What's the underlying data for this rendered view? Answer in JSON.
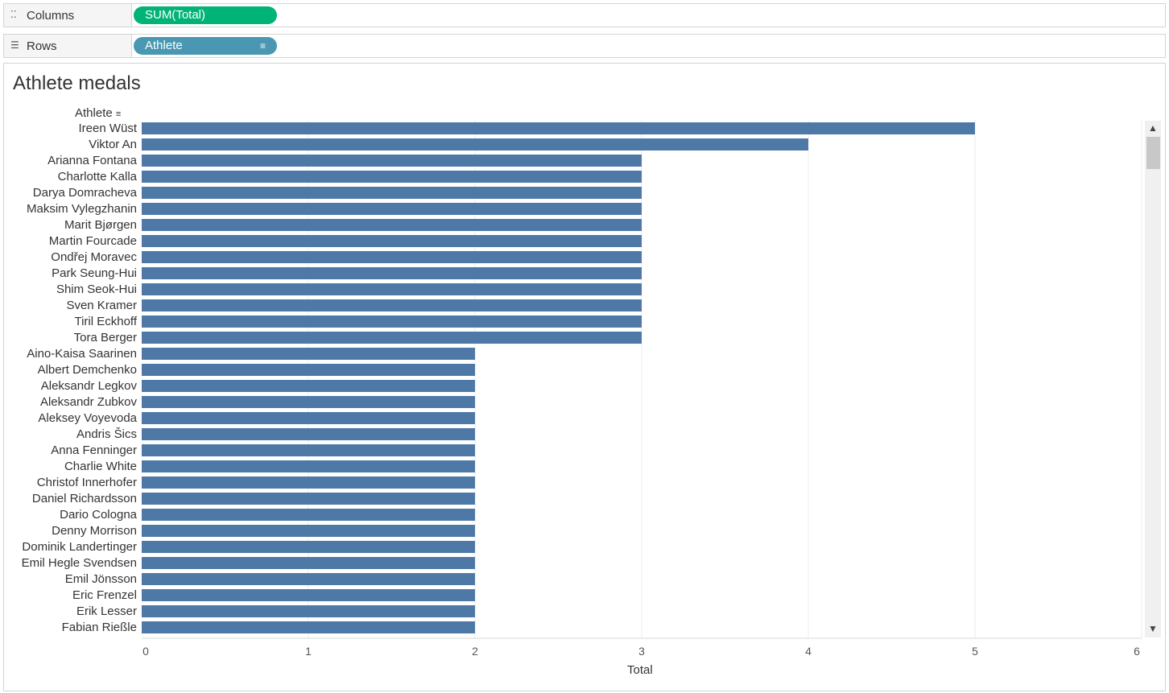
{
  "shelves": {
    "columns": {
      "label": "Columns",
      "icon": "columns-icon",
      "pill": "SUM(Total)"
    },
    "rows": {
      "label": "Rows",
      "icon": "rows-icon",
      "pill": "Athlete"
    }
  },
  "colors": {
    "bar": "#4e79a7",
    "columns_pill": "#00b377",
    "rows_pill": "#4a97b2"
  },
  "chart_data": {
    "type": "bar",
    "orientation": "horizontal",
    "title": "Athlete medals",
    "row_header": "Athlete",
    "xlabel": "Total",
    "xlim": [
      0,
      6
    ],
    "x_ticks": [
      0,
      1,
      2,
      3,
      4,
      5,
      6
    ],
    "grid": true,
    "categories": [
      "Ireen Wüst",
      "Viktor An",
      "Arianna Fontana",
      "Charlotte Kalla",
      "Darya Domracheva",
      "Maksim Vylegzhanin",
      "Marit Bjørgen",
      "Martin Fourcade",
      "Ondřej Moravec",
      "Park Seung-Hui",
      "Shim Seok-Hui",
      "Sven Kramer",
      "Tiril Eckhoff",
      "Tora Berger",
      "Aino-Kaisa Saarinen",
      "Albert Demchenko",
      "Aleksandr Legkov",
      "Aleksandr Zubkov",
      "Aleksey Voyevoda",
      "Andris Šics",
      "Anna Fenninger",
      "Charlie White",
      "Christof Innerhofer",
      "Daniel Richardsson",
      "Dario Cologna",
      "Denny Morrison",
      "Dominik Landertinger",
      "Emil Hegle Svendsen",
      "Emil Jönsson",
      "Eric Frenzel",
      "Erik Lesser",
      "Fabian Rießle"
    ],
    "values": [
      5,
      4,
      3,
      3,
      3,
      3,
      3,
      3,
      3,
      3,
      3,
      3,
      3,
      3,
      2,
      2,
      2,
      2,
      2,
      2,
      2,
      2,
      2,
      2,
      2,
      2,
      2,
      2,
      2,
      2,
      2,
      2
    ]
  }
}
